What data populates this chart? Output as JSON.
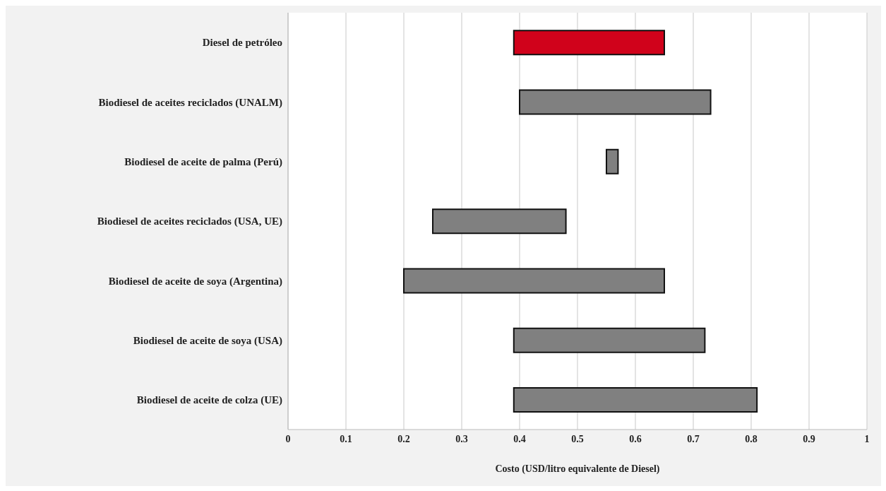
{
  "chart_data": {
    "type": "bar",
    "orientation": "horizontal",
    "categories": [
      "Diesel de petróleo",
      "Biodiesel de aceites reciclados (UNALM)",
      "Biodiesel de aceite de palma (Perú)",
      "Biodiesel de aceites reciclados (USA, UE)",
      "Biodiesel de aceite de soya (Argentina)",
      "Biodiesel de aceite de soya (USA)",
      "Biodiesel de aceite de colza (UE)"
    ],
    "base": [
      0.39,
      0.4,
      0.55,
      0.25,
      0.2,
      0.39,
      0.39
    ],
    "values": [
      0.26,
      0.33,
      0.02,
      0.23,
      0.45,
      0.33,
      0.42
    ],
    "colors": [
      "#d0021b",
      "#808080",
      "#808080",
      "#808080",
      "#808080",
      "#808080",
      "#808080"
    ],
    "xlabel": "Costo (USD/litro equivalente de Diesel)",
    "xlim": [
      0,
      1
    ],
    "xticks": [
      0,
      0.1,
      0.2,
      0.3,
      0.4,
      0.5,
      0.6,
      0.7,
      0.8,
      0.9,
      1
    ],
    "grid": "x"
  }
}
